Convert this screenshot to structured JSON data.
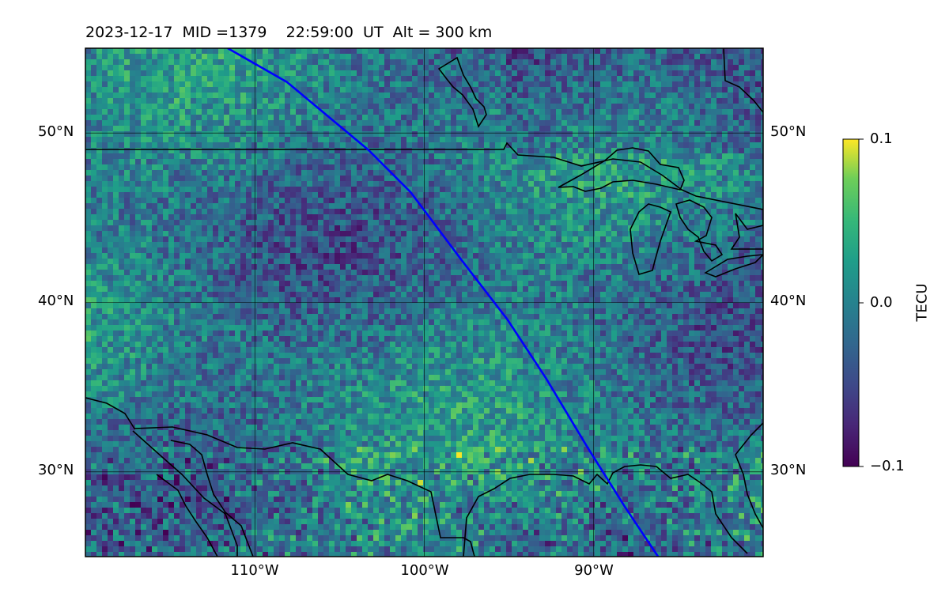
{
  "title": {
    "date": "2023-12-17",
    "mid": "MID =1379",
    "time": "22:59:00  UT",
    "alt": "Alt = 300 km"
  },
  "map": {
    "lat_labels": [
      "50°N",
      "40°N",
      "30°N"
    ],
    "lon_labels": [
      "110°W",
      "100°W",
      "90°W"
    ],
    "lat_ticks": [
      50,
      40,
      30
    ],
    "lon_ticks": [
      -110,
      -100,
      -90
    ],
    "lon_range": [
      -120,
      -80
    ],
    "lat_range": [
      25,
      55
    ],
    "track_color": "#0000ff"
  },
  "colorbar": {
    "label": "TECU",
    "ticks": [
      "0.1",
      "0.0",
      "−0.1"
    ],
    "tick_values": [
      0.1,
      0.0,
      -0.1
    ],
    "colormap": "viridis"
  },
  "chart_data": {
    "type": "heatmap",
    "title": "2023-12-17  MID =1379    22:59:00  UT  Alt = 300 km",
    "xlabel": "",
    "ylabel": "",
    "xlim": [
      -120,
      -80
    ],
    "ylim": [
      25,
      55
    ],
    "color_range": [
      -0.1,
      0.1
    ],
    "colorbar_label": "TECU",
    "track": {
      "lon": [
        -111.6,
        -108.1,
        -105.7,
        -103.3,
        -100.8,
        -97.8,
        -95.1,
        -92.8,
        -90.4,
        -88.2,
        -86.2
      ],
      "lat": [
        55.0,
        53.0,
        51.0,
        49.0,
        46.5,
        42.5,
        39.0,
        35.5,
        31.5,
        28.0,
        25.0
      ]
    }
  }
}
